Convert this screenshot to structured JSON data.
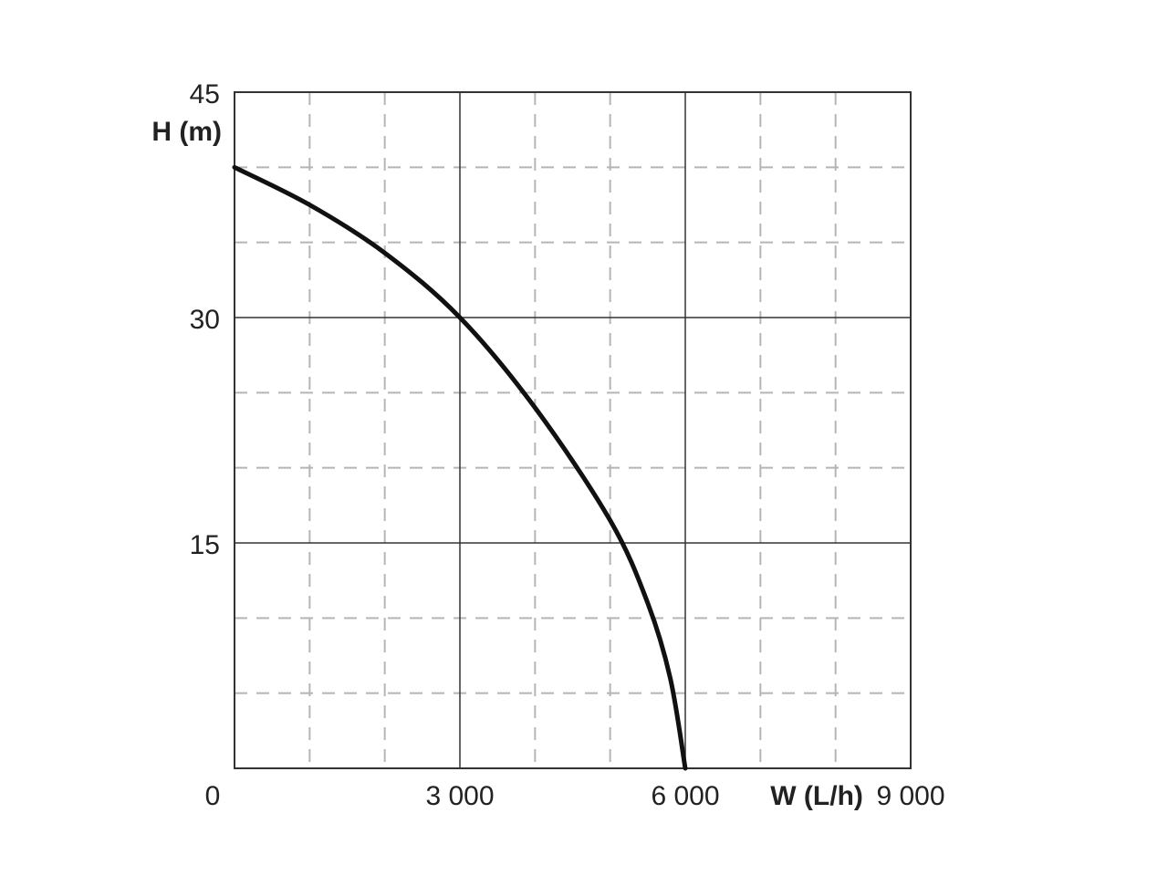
{
  "chart_data": {
    "type": "line",
    "xlabel": "W (L/h)",
    "ylabel": "H (m)",
    "xlim": [
      0,
      9000
    ],
    "ylim": [
      0,
      45
    ],
    "x_ticks": [
      0,
      3000,
      6000,
      9000
    ],
    "y_ticks": [
      15,
      30,
      45
    ],
    "x_tick_labels": [
      "0",
      "3 000",
      "6 000",
      "9 000"
    ],
    "y_tick_labels": [
      "15",
      "30",
      "45"
    ],
    "grid": {
      "major": true,
      "minor": "dashed",
      "minor_x_step": 1000,
      "minor_y_step": 5
    },
    "series": [
      {
        "x": [
          0,
          1000,
          2000,
          3000,
          4000,
          5000,
          5500,
          5800,
          6000
        ],
        "y": [
          40,
          37.5,
          34.3,
          30,
          24,
          16.5,
          11,
          6,
          0
        ]
      }
    ],
    "line_color": "#111111"
  }
}
